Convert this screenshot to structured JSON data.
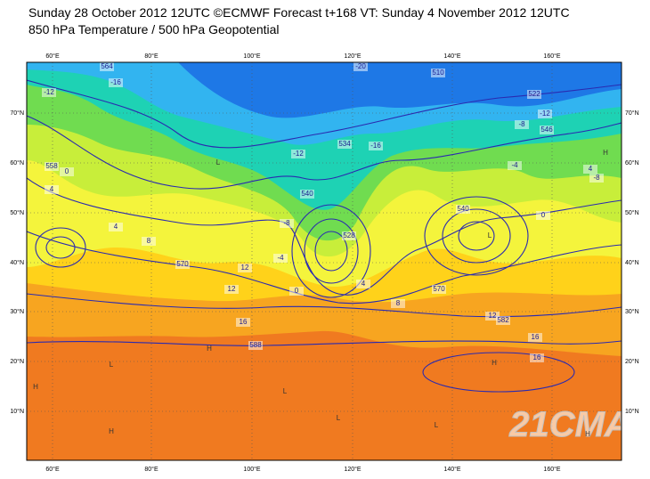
{
  "header": {
    "line1": "Sunday 28 October 2012 12UTC ©ECMWF Forecast t+168 VT: Sunday 4 November 2012 12UTC",
    "line2": "850 hPa Temperature / 500 hPa Geopotential"
  },
  "map": {
    "lon_labels": [
      "60°E",
      "80°E",
      "100°E",
      "120°E",
      "140°E",
      "160°E"
    ],
    "lat_labels": [
      "70°N",
      "60°N",
      "50°N",
      "40°N",
      "30°N",
      "20°N",
      "10°N"
    ],
    "contour_labels": [
      "-20",
      "564",
      "-16",
      "-12",
      "510",
      "522",
      "-12",
      "-8",
      "546",
      "534",
      "-16",
      "-12",
      "-4",
      "4",
      "-8",
      "558",
      "0",
      "4",
      "540",
      "-8",
      "528",
      "0",
      "540",
      "4",
      "8",
      "570",
      "12",
      "12",
      "-4",
      "0",
      "4",
      "8",
      "570",
      "16",
      "12",
      "582",
      "16",
      "16",
      "588"
    ],
    "pressure_centers": [
      "H",
      "L",
      "H",
      "L",
      "L",
      "H",
      "L",
      "H",
      "L",
      "H",
      "L",
      "H"
    ],
    "watermark": "21CMA"
  }
}
